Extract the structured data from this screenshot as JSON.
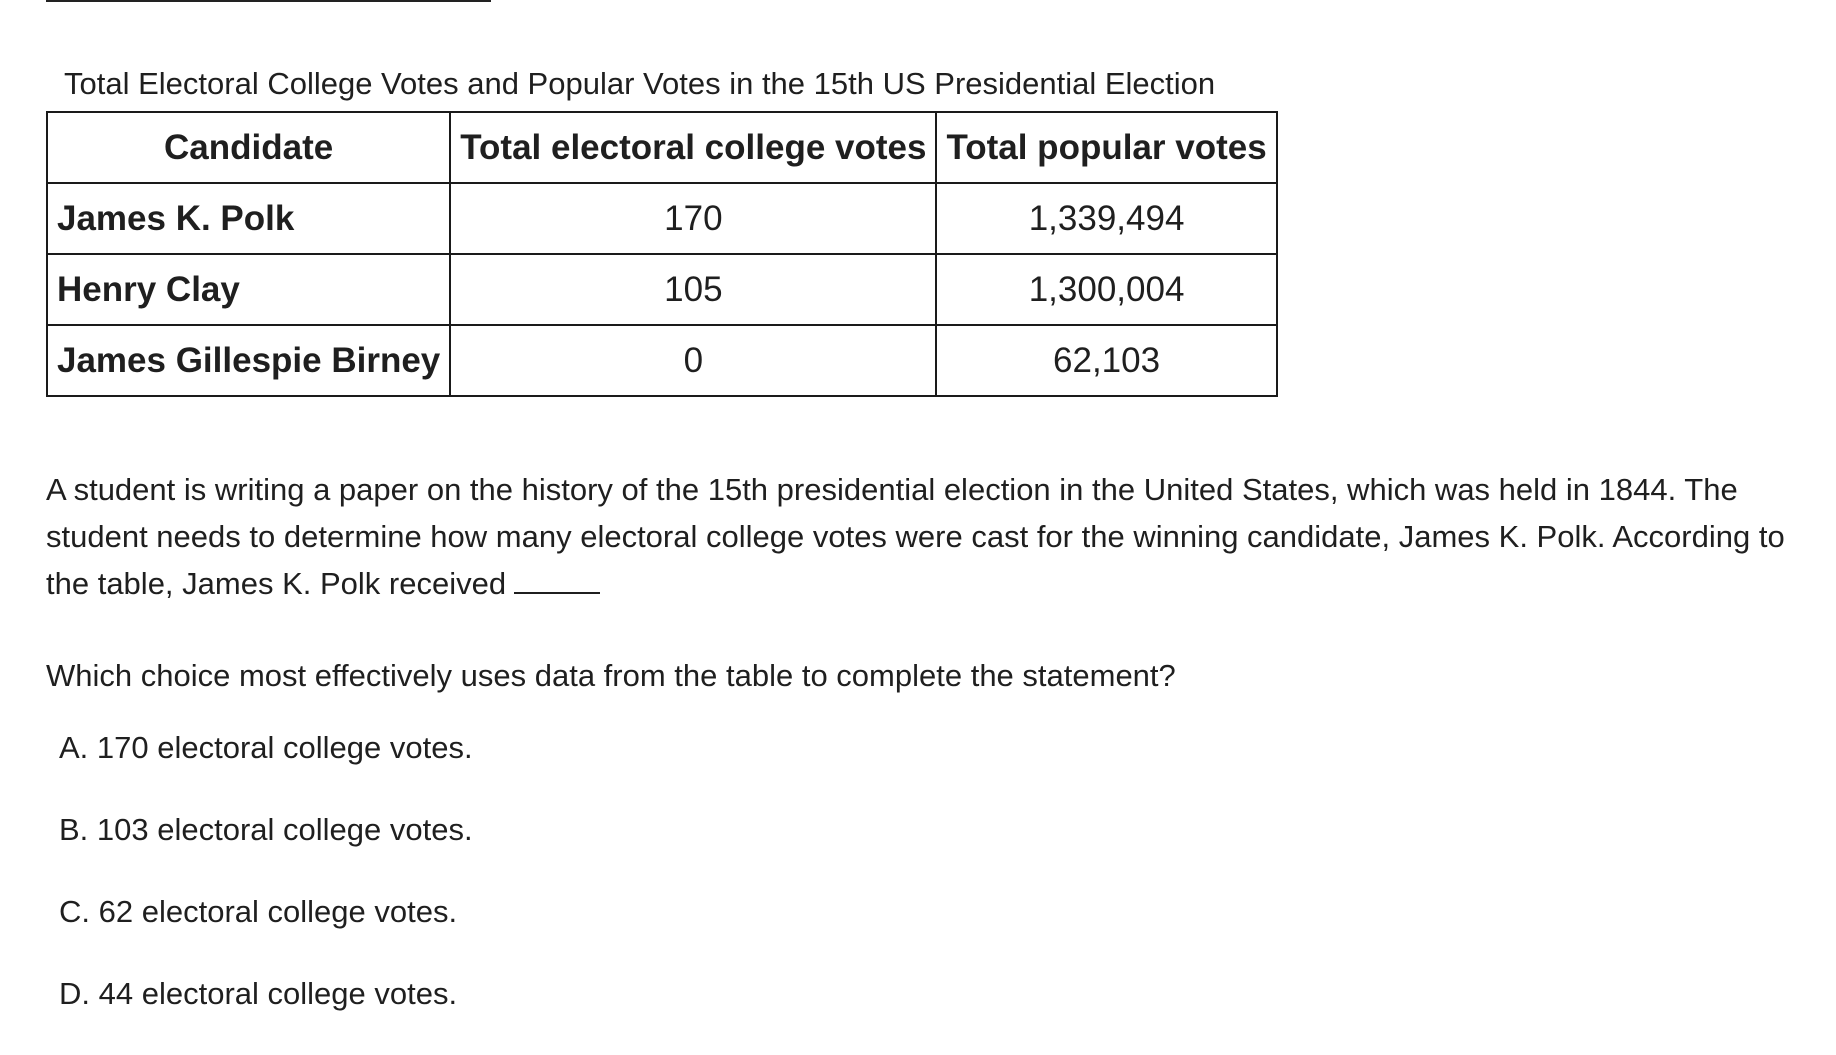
{
  "table": {
    "caption": "Total Electoral College Votes and Popular Votes in the 15th US Presidential Election",
    "headers": [
      "Candidate",
      "Total electoral college votes",
      "Total popular votes"
    ],
    "rows": [
      {
        "candidate": "James K. Polk",
        "electoral_votes": "170",
        "popular_votes": "1,339,494"
      },
      {
        "candidate": "Henry Clay",
        "electoral_votes": "105",
        "popular_votes": "1,300,004"
      },
      {
        "candidate": "James Gillespie Birney",
        "electoral_votes": "0",
        "popular_votes": "62,103"
      }
    ]
  },
  "passage": {
    "text": "A student is writing a paper on the history of the 15th presidential election in the United States, which was held in 1844. The student needs to determine how many electoral college votes were cast for the winning candidate, James K. Polk. According to the table, James K. Polk received"
  },
  "question": {
    "text": "Which choice most effectively uses data from the table to complete the statement?"
  },
  "choices": [
    {
      "label": "A.",
      "text": "170 electoral college votes."
    },
    {
      "label": "B.",
      "text": "103 electoral college votes."
    },
    {
      "label": "C.",
      "text": "62 electoral college votes."
    },
    {
      "label": "D.",
      "text": "44 electoral college votes."
    }
  ]
}
